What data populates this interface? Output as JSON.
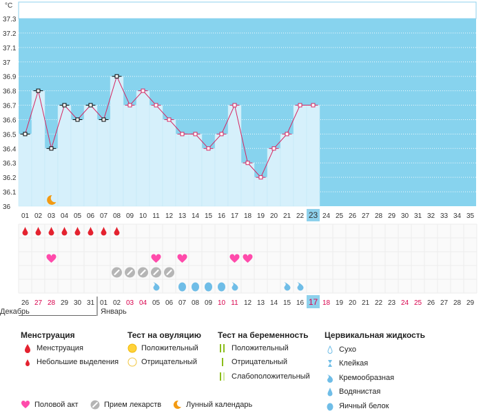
{
  "chart_data": {
    "type": "line",
    "unit_label": "°C",
    "y_ticks": [
      "36",
      "36.1",
      "36.2",
      "36.3",
      "36.4",
      "36.5",
      "36.6",
      "36.7",
      "36.8",
      "36.9",
      "37",
      "37.1",
      "37.2",
      "37.3"
    ],
    "ylim": [
      36.0,
      37.3
    ],
    "cover_line": 37.3,
    "days": [
      "01",
      "02",
      "03",
      "04",
      "05",
      "06",
      "07",
      "08",
      "09",
      "10",
      "11",
      "12",
      "13",
      "14",
      "15",
      "16",
      "17",
      "18",
      "19",
      "20",
      "21",
      "22",
      "23",
      "24",
      "25",
      "26",
      "27",
      "28",
      "29",
      "30",
      "31",
      "32",
      "33",
      "34",
      "35"
    ],
    "current_day_index": 22,
    "temperatures": [
      36.5,
      36.8,
      36.4,
      36.7,
      36.6,
      36.7,
      36.6,
      36.9,
      36.7,
      36.8,
      36.7,
      36.6,
      36.5,
      36.5,
      36.4,
      36.5,
      36.7,
      36.3,
      36.2,
      36.4,
      36.5,
      36.7,
      36.7
    ],
    "black_marker_days": [
      1,
      2,
      3,
      4,
      5,
      6,
      7,
      8
    ],
    "menstruation_days": [
      1,
      2,
      3,
      4,
      5,
      6,
      7,
      8
    ],
    "intercourse_days": [
      3,
      11,
      13,
      17,
      18
    ],
    "medication_days": [
      8,
      9,
      10,
      11,
      12
    ],
    "moon_day": 3,
    "fluid_days": [
      {
        "day": 11,
        "type": "creamy"
      },
      {
        "day": 13,
        "type": "egg-white"
      },
      {
        "day": 14,
        "type": "egg-white"
      },
      {
        "day": 15,
        "type": "egg-white"
      },
      {
        "day": 16,
        "type": "egg-white"
      },
      {
        "day": 17,
        "type": "creamy"
      },
      {
        "day": 21,
        "type": "creamy"
      },
      {
        "day": 22,
        "type": "creamy"
      }
    ],
    "dates": [
      "26",
      "27",
      "28",
      "29",
      "30",
      "31",
      "01",
      "02",
      "03",
      "04",
      "05",
      "06",
      "07",
      "08",
      "09",
      "10",
      "11",
      "12",
      "13",
      "14",
      "15",
      "16",
      "17",
      "18",
      "19",
      "20",
      "21",
      "22",
      "23",
      "24",
      "25",
      "26",
      "27",
      "28",
      "29"
    ],
    "red_date_indices": [
      1,
      2,
      8,
      9,
      15,
      16,
      22,
      23,
      29,
      30
    ],
    "current_date_index": 22,
    "month_labels": [
      {
        "label": "Декабрь",
        "start_index": 0
      },
      {
        "label": "Январь",
        "start_index": 6
      }
    ]
  },
  "colors": {
    "plot_bg": "#87d3ee",
    "bar_fill": "#d6f0fb",
    "line": "#d6245f",
    "grid": "#c8c8c8",
    "today": "#8ed1ec",
    "red_date": "#d8004c",
    "drop_red": "#e4222f",
    "heart": "#ff4bab",
    "pill": "#b5b5b5",
    "moon": "#f39a12",
    "fluid_blue": "#6fbde7"
  },
  "legend": {
    "menstruation": {
      "title": "Менструация",
      "items": [
        "Менструация",
        "Небольшие выделения"
      ]
    },
    "ovulation": {
      "title": "Тест на овуляцию",
      "items": [
        "Положительный",
        "Отрицательный"
      ]
    },
    "pregnancy": {
      "title": "Тест на беременность",
      "items": [
        "Положительный",
        "Отрицательный",
        "Слабоположительный"
      ]
    },
    "fluid": {
      "title": "Цервикальная жидкость",
      "items": [
        "Сухо",
        "Клейкая",
        "Кремообразная",
        "Водянистая",
        "Яичный белок"
      ]
    },
    "bottom": [
      "Половой акт",
      "Прием лекарств",
      "Лунный календарь"
    ]
  }
}
